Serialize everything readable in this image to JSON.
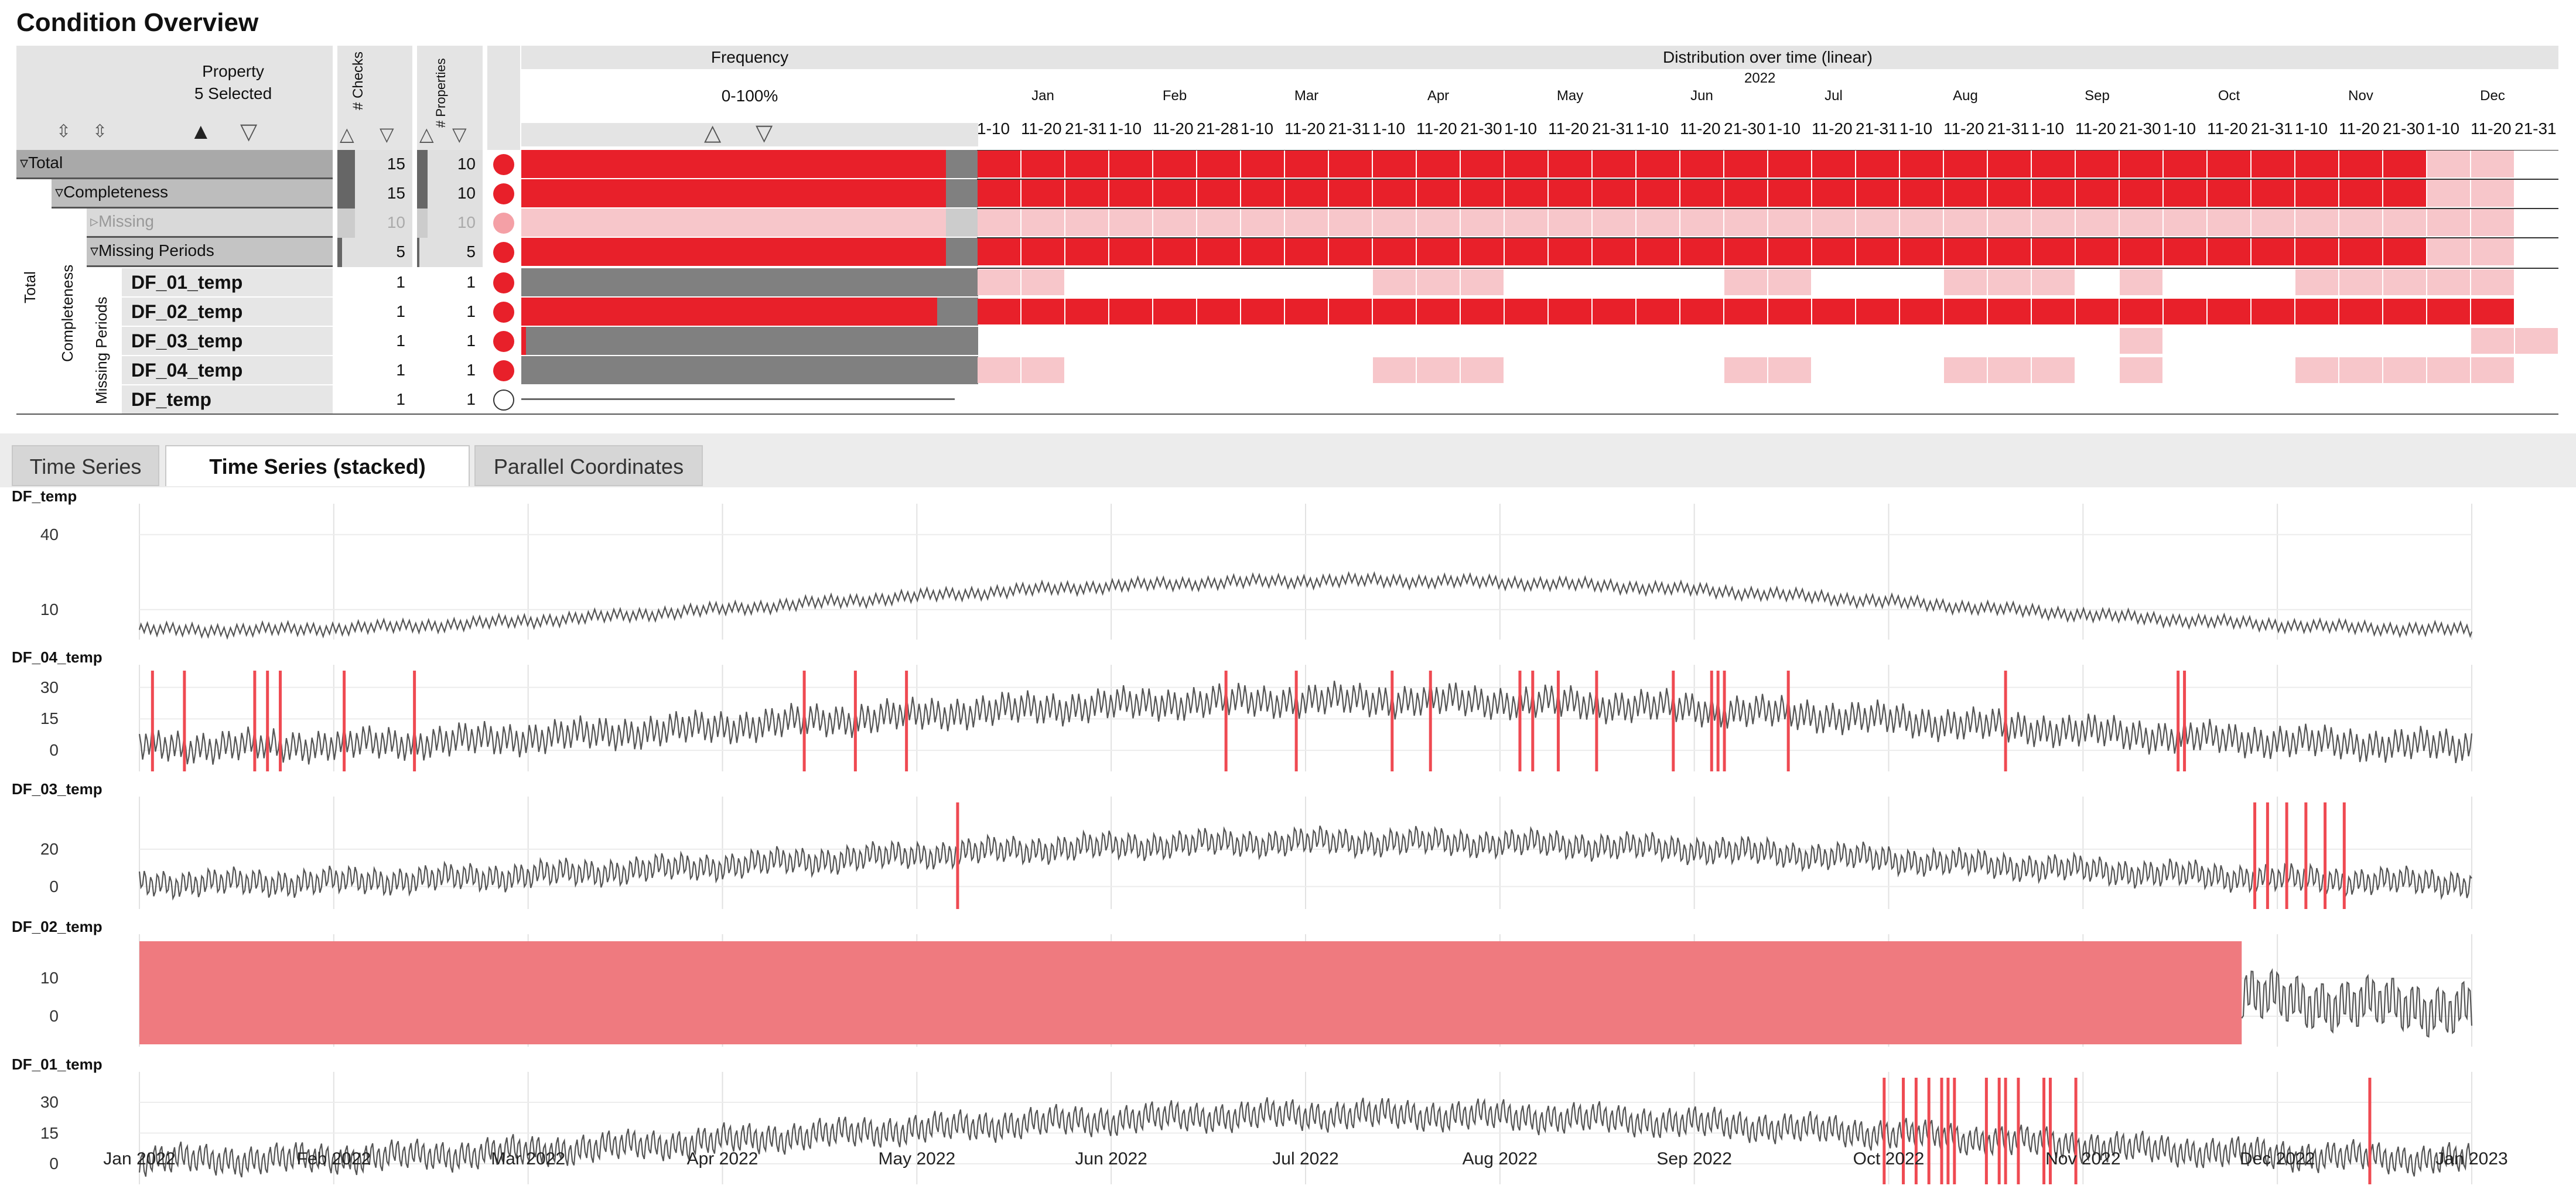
{
  "title": "Condition Overview",
  "table": {
    "property_header": "Property",
    "property_selected": "5 Selected",
    "checks_header": "# Checks",
    "properties_header": "# Properties",
    "frequency_header": "Frequency",
    "frequency_range": "0-100%",
    "distribution_header": "Distribution over time (linear)",
    "year": "2022",
    "months": [
      "Jan",
      "Feb",
      "Mar",
      "Apr",
      "May",
      "Jun",
      "Jul",
      "Aug",
      "Sep",
      "Oct",
      "Nov",
      "Dec"
    ],
    "decades": [
      "1-10",
      "11-20",
      "21-31",
      "1-10",
      "11-20",
      "21-28",
      "1-10",
      "11-20",
      "21-31",
      "1-10",
      "11-20",
      "21-30",
      "1-10",
      "11-20",
      "21-31",
      "1-10",
      "11-20",
      "21-30",
      "1-10",
      "11-20",
      "21-31",
      "1-10",
      "11-20",
      "21-31",
      "1-10",
      "11-20",
      "21-30",
      "1-10",
      "11-20",
      "21-31",
      "1-10",
      "11-20",
      "21-30",
      "1-10",
      "11-20",
      "21-31"
    ],
    "vertical_labels": {
      "total": "Total",
      "completeness": "Completeness",
      "missing_periods": "Missing Periods"
    },
    "group_rows": [
      {
        "label": "Total",
        "checks": "15",
        "properties": "10",
        "frequency": 0.93
      },
      {
        "label": "Completeness",
        "checks": "15",
        "properties": "10",
        "frequency": 0.93
      },
      {
        "label": "Missing",
        "checks": "10",
        "properties": "10",
        "frequency": 0.93
      },
      {
        "label": "Missing Periods",
        "checks": "5",
        "properties": "5",
        "frequency": 0.93
      }
    ],
    "leaf_rows": [
      {
        "label": "DF_01_temp",
        "checks": "1",
        "properties": "1",
        "frequency": 0.0
      },
      {
        "label": "DF_02_temp",
        "checks": "1",
        "properties": "1",
        "frequency": 0.91
      },
      {
        "label": "DF_03_temp",
        "checks": "1",
        "properties": "1",
        "frequency": 0.01
      },
      {
        "label": "DF_04_temp",
        "checks": "1",
        "properties": "1",
        "frequency": 0.0
      },
      {
        "label": "DF_temp",
        "checks": "1",
        "properties": "1",
        "frequency": 0.0
      }
    ]
  },
  "tabs": [
    "Time Series",
    "Time Series (stacked)",
    "Parallel Coordinates"
  ],
  "active_tab": "Time Series (stacked)",
  "colors": {
    "accent": "#e8202a",
    "pale": "#f7c6ca",
    "grey": "#808080",
    "line": "#555555"
  },
  "chart_data": [
    {
      "type": "line",
      "title": "DF_temp",
      "yticks": [
        "40",
        "10"
      ],
      "highlights": []
    },
    {
      "type": "line",
      "title": "DF_04_temp",
      "yticks": [
        "30",
        "15",
        "0"
      ],
      "highlights": [
        "2022-01-03",
        "2022-01-08",
        "2022-01-19",
        "2022-01-21",
        "2022-01-23",
        "2022-02-02",
        "2022-02-13",
        "2022-04-15",
        "2022-04-23",
        "2022-05-01",
        "2022-06-20",
        "2022-07-01",
        "2022-07-16",
        "2022-07-22",
        "2022-08-05",
        "2022-08-07",
        "2022-08-11",
        "2022-08-17",
        "2022-08-29",
        "2022-09-04",
        "2022-09-05",
        "2022-09-06",
        "2022-09-16",
        "2022-10-20",
        "2022-11-16",
        "2022-11-17"
      ]
    },
    {
      "type": "line",
      "title": "DF_03_temp",
      "yticks": [
        "20",
        "0"
      ],
      "highlights": [
        "2022-05-09",
        "2022-11-28",
        "2022-11-30",
        "2022-12-03",
        "2022-12-06",
        "2022-12-09",
        "2022-12-12"
      ]
    },
    {
      "type": "line",
      "title": "DF_02_temp",
      "yticks": [
        "10",
        "0"
      ],
      "missing_range": [
        "2022-01-01",
        "2022-11-26"
      ]
    },
    {
      "type": "line",
      "title": "DF_01_temp",
      "yticks": [
        "30",
        "15",
        "0"
      ],
      "highlights": [
        "2022-10-01",
        "2022-10-04",
        "2022-10-06",
        "2022-10-08",
        "2022-10-10",
        "2022-10-11",
        "2022-10-12",
        "2022-10-17",
        "2022-10-19",
        "2022-10-20",
        "2022-10-22",
        "2022-10-26",
        "2022-10-27",
        "2022-10-31",
        "2022-12-16"
      ]
    }
  ],
  "x_axis_ticks": [
    "Jan 2022",
    "Feb 2022",
    "Mar 2022",
    "Apr 2022",
    "May 2022",
    "Jun 2022",
    "Jul 2022",
    "Aug 2022",
    "Sep 2022",
    "Oct 2022",
    "Nov 2022",
    "Dec 2022",
    "Jan 2023"
  ]
}
